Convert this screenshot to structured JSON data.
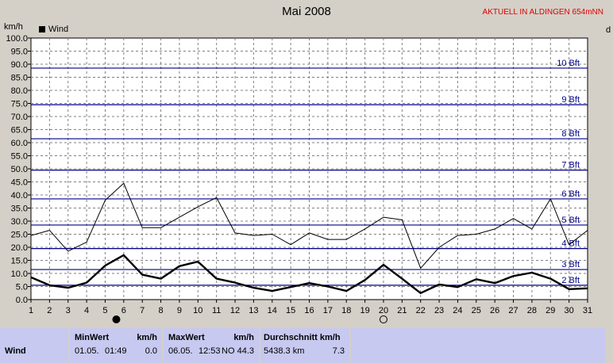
{
  "header": {
    "title": "Mai 2008",
    "station": "AKTUELL IN ALDINGEN 654mNN",
    "unit_left": "km/h",
    "unit_right": "d"
  },
  "chart_data": {
    "type": "line",
    "x": [
      1,
      2,
      3,
      4,
      5,
      6,
      7,
      8,
      9,
      10,
      11,
      12,
      13,
      14,
      15,
      16,
      17,
      18,
      19,
      20,
      21,
      22,
      23,
      24,
      25,
      26,
      27,
      28,
      29,
      30,
      31
    ],
    "series": [
      {
        "name": "Wind",
        "kind": "average",
        "color": "#000000",
        "values": [
          8.5,
          5.5,
          4.5,
          6.5,
          13,
          17,
          9.5,
          8,
          12.8,
          14.5,
          8,
          6.5,
          4.5,
          3.3,
          4.8,
          6.3,
          5,
          3.3,
          7.5,
          13.3,
          8,
          2.5,
          5.8,
          4.8,
          7.8,
          6.3,
          9,
          10.3,
          8,
          4,
          4.3
        ]
      },
      {
        "kind": "gust",
        "color": "#000000",
        "values": [
          24.5,
          26.5,
          18.5,
          22,
          38,
          44.5,
          27.5,
          27.5,
          31.5,
          35.5,
          39,
          25.5,
          24.5,
          25,
          21,
          25.5,
          23,
          23,
          27,
          31.5,
          30.5,
          12,
          20,
          24.5,
          25,
          27,
          31,
          27,
          38.5,
          21,
          26.5
        ]
      }
    ],
    "xlabels": [
      "1",
      "2",
      "3",
      "4",
      "5",
      "6",
      "7",
      "8",
      "9",
      "10",
      "11",
      "12",
      "13",
      "14",
      "15",
      "16",
      "17",
      "18",
      "19",
      "20",
      "21",
      "22",
      "23",
      "24",
      "25",
      "26",
      "27",
      "28",
      "29",
      "30",
      "31"
    ],
    "yticks": [
      "0.0",
      "5.0",
      "10.0",
      "15.0",
      "20.0",
      "25.0",
      "30.0",
      "35.0",
      "40.0",
      "45.0",
      "50.0",
      "55.0",
      "60.0",
      "65.0",
      "70.0",
      "75.0",
      "80.0",
      "85.0",
      "90.0",
      "95.0",
      "100.0"
    ],
    "ylim": [
      0,
      100
    ],
    "xlim": [
      1,
      31
    ],
    "grid": true,
    "legend": "top-left",
    "beaufort": [
      {
        "label": "2 Bft",
        "value": 5.5
      },
      {
        "label": "3 Bft",
        "value": 11.5
      },
      {
        "label": "4 Bft",
        "value": 19.5
      },
      {
        "label": "5 Bft",
        "value": 28.5
      },
      {
        "label": "6 Bft",
        "value": 38.5
      },
      {
        "label": "7 Bft",
        "value": 49.5
      },
      {
        "label": "8 Bft",
        "value": 61.5
      },
      {
        "label": "9 Bft",
        "value": 74.5
      },
      {
        "label": "10 Bft",
        "value": 88.5
      }
    ],
    "moon_phases": [
      {
        "day": 5.6,
        "phase": "new-moon"
      },
      {
        "day": 20,
        "phase": "full-moon"
      }
    ],
    "colors": {
      "background": "#ffffff",
      "beaufort_line": "#00008b",
      "beaufort_text": "#00008b",
      "grid": "#808080"
    }
  },
  "stats": {
    "row_label": "Wind",
    "min": {
      "header": "MinWert",
      "unit": "km/h",
      "date": "01.05.",
      "time": "01:49",
      "value": "0.0"
    },
    "max": {
      "header": "MaxWert",
      "unit": "km/h",
      "date": "06.05.",
      "time": "12:53",
      "dir": "NO",
      "value": "44.3"
    },
    "avg": {
      "header": "Durchschnitt km/h",
      "distance": "5438.3 km",
      "value": "7.3"
    }
  }
}
